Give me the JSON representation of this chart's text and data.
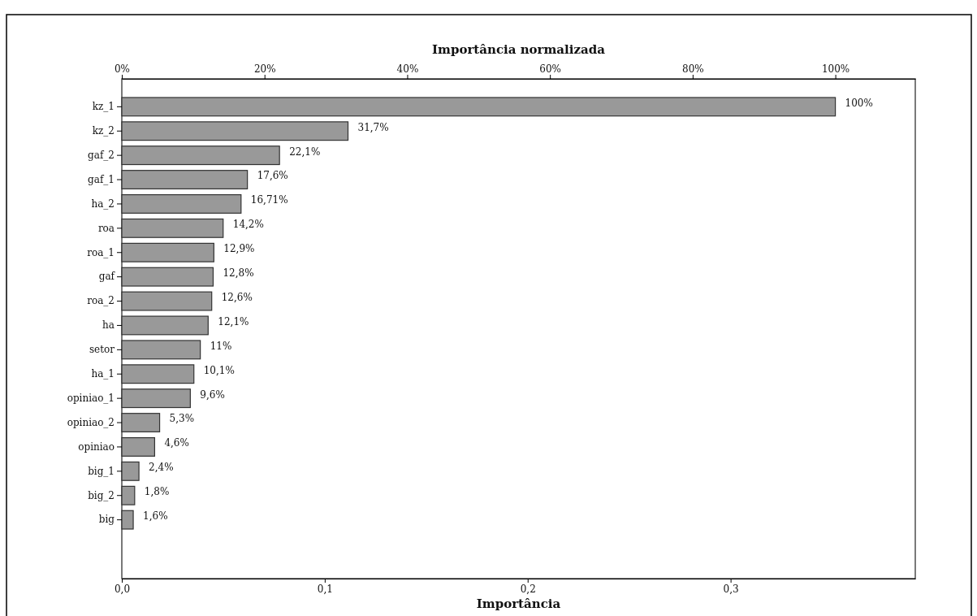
{
  "chart_data": {
    "type": "bar",
    "orientation": "horizontal",
    "x2label": "Importância normalizada",
    "xlabel": "Importância",
    "categories": [
      "kz_1",
      "kz_2",
      "gaf_2",
      "gaf_1",
      "ha_2",
      "roa",
      "roa_1",
      "gaf",
      "roa_2",
      "ha",
      "setor",
      "ha_1",
      "opiniao_1",
      "opiniao_2",
      "opiniao",
      "big_1",
      "big_2",
      "big"
    ],
    "series": [
      {
        "color": "#999999",
        "axis": "x2",
        "values": [
          100,
          31.7,
          22.1,
          17.6,
          16.71,
          14.2,
          12.9,
          12.8,
          12.6,
          12.1,
          11,
          10.1,
          9.6,
          5.3,
          4.6,
          2.4,
          1.8,
          1.6
        ],
        "value_labels": [
          "100%",
          "31,7%",
          "22,1%",
          "17,6%",
          "16,71%",
          "14,2%",
          "12,9%",
          "12,8%",
          "12,6%",
          "12,1%",
          "11%",
          "10,1%",
          "9,6%",
          "5,3%",
          "4,6%",
          "2,4%",
          "1,8%",
          "1,6%"
        ]
      }
    ],
    "xlim": [
      0,
      0.391
    ],
    "xticks": [
      {
        "value": 0,
        "label": "0,0"
      },
      {
        "value": 0.1,
        "label": "0,1"
      },
      {
        "value": 0.2,
        "label": "0,2"
      },
      {
        "value": 0.3,
        "label": "0,3"
      }
    ],
    "x2lim": [
      0,
      111.2
    ],
    "x2ticks": [
      {
        "value": 0,
        "label": "0%"
      },
      {
        "value": 20,
        "label": "20%"
      },
      {
        "value": 40,
        "label": "40%"
      },
      {
        "value": 60,
        "label": "60%"
      },
      {
        "value": 80,
        "label": "80%"
      },
      {
        "value": 100,
        "label": "100%"
      }
    ],
    "grid": false
  }
}
